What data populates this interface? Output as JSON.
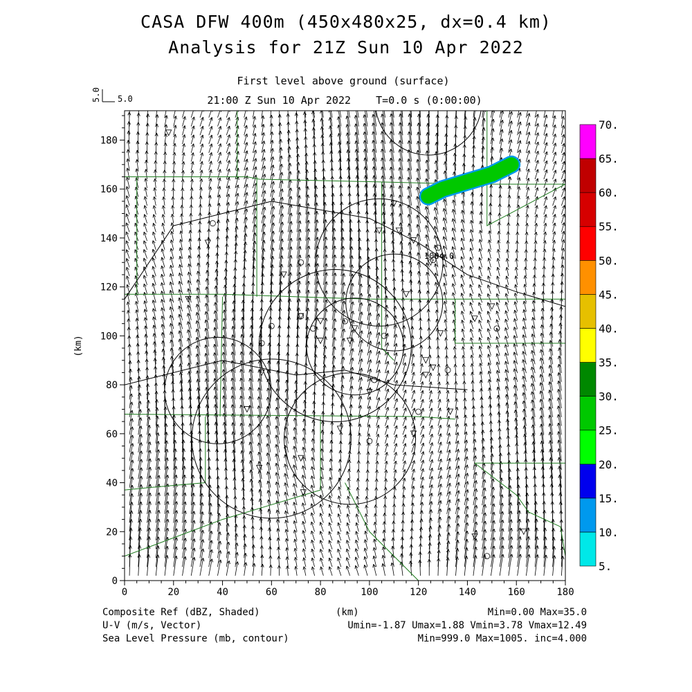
{
  "header": {
    "title_line1": "CASA DFW 400m (450x480x25, dx=0.4 km)",
    "title_line2": "Analysis for 21Z Sun 10 Apr 2022",
    "level_label": "First level above ground (surface)",
    "time_label": "21:00 Z Sun 10 Apr 2022    T=0.0 s (0:00:00)",
    "ref_vector_label": "5.0",
    "ref_vector_vertical_label": "5.0"
  },
  "footer": {
    "field1": "Composite Ref (dBZ, Shaded)",
    "field2": "U-V (m/s, Vector)",
    "field3": "Sea Level Pressure (mb, contour)",
    "x_unit": "(km)",
    "stats1": "Min=0.00 Max=35.0",
    "stats2": "Umin=-1.87 Umax=1.88 Vmin=3.78 Vmax=12.49",
    "stats3": "Min=999.0 Max=1005. inc=4.000"
  },
  "chart_data": {
    "type": "heatmap",
    "xlabel": "(km)",
    "ylabel": "(km)",
    "xlim": [
      0,
      180
    ],
    "ylim": [
      0,
      192
    ],
    "x_ticks": [
      "0",
      "20",
      "40",
      "60",
      "80",
      "100",
      "120",
      "140",
      "160",
      "180"
    ],
    "y_ticks": [
      "0",
      "20",
      "40",
      "60",
      "80",
      "100",
      "120",
      "140",
      "160",
      "180"
    ],
    "colorbar": {
      "levels": [
        "5.",
        "10.",
        "15.",
        "20.",
        "25.",
        "30.",
        "35.",
        "40.",
        "45.",
        "50.",
        "55.",
        "60.",
        "65.",
        "70."
      ],
      "colors": [
        "#00e8e8",
        "#0099ee",
        "#0000ee",
        "#00ff00",
        "#00c800",
        "#008800",
        "#ffff00",
        "#e6c000",
        "#ff9000",
        "#ff0000",
        "#d60000",
        "#c00000",
        "#ff00ff",
        "#9955cc"
      ]
    },
    "contour_label": "1004.0",
    "reflectivity_band": {
      "value_dbz": 25,
      "points": [
        [
          124,
          157
        ],
        [
          130,
          160
        ],
        [
          140,
          163
        ],
        [
          150,
          166
        ],
        [
          158,
          170
        ]
      ]
    },
    "wind": {
      "u_range": [
        -1.87,
        1.88
      ],
      "v_range": [
        3.78,
        12.49
      ]
    }
  }
}
